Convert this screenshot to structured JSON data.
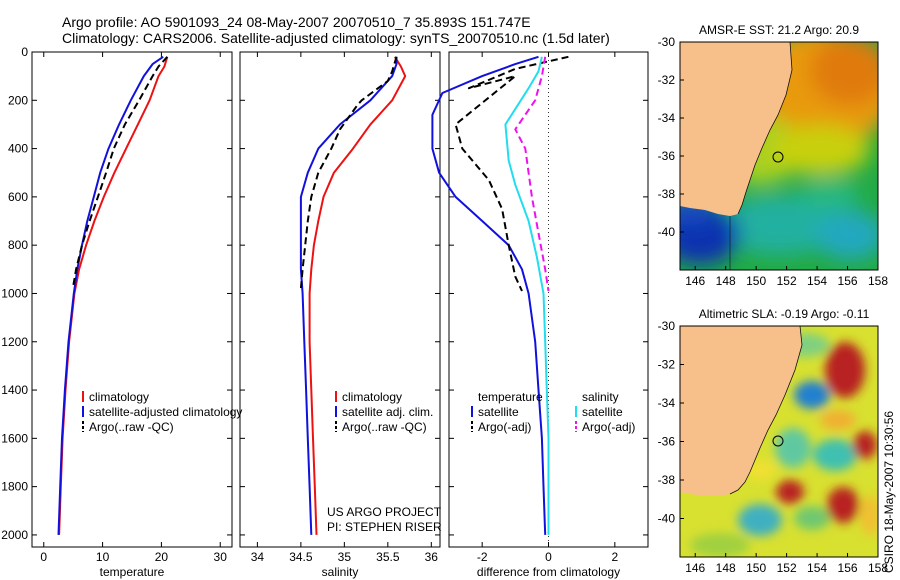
{
  "header": {
    "line1": "Argo profile: AO 5901093_24 08-May-2007 20070510_7 35.893S 151.747E",
    "line2": "Climatology: CARS2006. Satellite-adjusted climatology: synTS_20070510.nc (1.5d later)"
  },
  "credit": {
    "project": "US ARGO PROJECT",
    "pi": "PI: STEPHEN RISER",
    "side": "CSIRO 18-May-2007 10:30:56"
  },
  "colors": {
    "climatology": "#ee1111",
    "satellite": "#1111dd",
    "argo": "#000000",
    "salinity_sat": "#22ddee",
    "salinity_argo": "#ee11ee",
    "land": "#f7c08a"
  },
  "chart_data": [
    {
      "id": "temperature",
      "type": "line",
      "xlabel": "temperature",
      "ylabel": "",
      "xlim": [
        -2,
        32
      ],
      "ylim": [
        2050,
        0
      ],
      "xticks": [
        0,
        10,
        20,
        30
      ],
      "yticks": [
        0,
        200,
        400,
        600,
        800,
        1000,
        1200,
        1400,
        1600,
        1800,
        2000
      ],
      "legend": [
        "climatology",
        "satellite-adjusted climatology",
        "Argo(..raw -QC)"
      ],
      "series": [
        {
          "name": "climatology",
          "color": "#ee1111",
          "dash": false,
          "points": [
            [
              21.0,
              20
            ],
            [
              20.5,
              60
            ],
            [
              19.5,
              100
            ],
            [
              18.0,
              200
            ],
            [
              16.0,
              300
            ],
            [
              14.0,
              400
            ],
            [
              12.0,
              500
            ],
            [
              10.2,
              600
            ],
            [
              8.6,
              700
            ],
            [
              7.2,
              800
            ],
            [
              6.0,
              900
            ],
            [
              5.2,
              1000
            ],
            [
              4.3,
              1200
            ],
            [
              3.7,
              1400
            ],
            [
              3.2,
              1600
            ],
            [
              2.9,
              1800
            ],
            [
              2.6,
              2000
            ]
          ]
        },
        {
          "name": "satellite-adjusted climatology",
          "color": "#1111dd",
          "dash": false,
          "points": [
            [
              20.3,
              20
            ],
            [
              18.5,
              50
            ],
            [
              17.0,
              100
            ],
            [
              14.8,
              200
            ],
            [
              12.8,
              300
            ],
            [
              11.0,
              400
            ],
            [
              9.6,
              500
            ],
            [
              8.5,
              600
            ],
            [
              7.4,
              700
            ],
            [
              6.5,
              800
            ],
            [
              5.7,
              900
            ],
            [
              5.1,
              1000
            ],
            [
              4.2,
              1200
            ],
            [
              3.6,
              1400
            ],
            [
              3.1,
              1600
            ],
            [
              2.8,
              1800
            ],
            [
              2.5,
              2000
            ]
          ]
        },
        {
          "name": "Argo(..raw -QC)",
          "color": "#000000",
          "dash": true,
          "points": [
            [
              21.0,
              20
            ],
            [
              19.5,
              60
            ],
            [
              18.5,
              100
            ],
            [
              16.2,
              200
            ],
            [
              13.8,
              300
            ],
            [
              11.9,
              400
            ],
            [
              10.6,
              500
            ],
            [
              9.2,
              600
            ],
            [
              7.8,
              700
            ],
            [
              6.5,
              800
            ],
            [
              5.5,
              900
            ],
            [
              5.0,
              970
            ]
          ]
        }
      ]
    },
    {
      "id": "salinity",
      "type": "line",
      "xlabel": "salinity",
      "ylabel": "",
      "xlim": [
        33.8,
        36.1
      ],
      "ylim": [
        2050,
        0
      ],
      "xticks": [
        34,
        34.5,
        35,
        35.5,
        36
      ],
      "yticks": [
        0,
        200,
        400,
        600,
        800,
        1000,
        1200,
        1400,
        1600,
        1800,
        2000
      ],
      "legend": [
        "climatology",
        "satellite adj. clim.",
        "Argo(..raw -QC)"
      ],
      "series": [
        {
          "name": "climatology",
          "color": "#ee1111",
          "dash": false,
          "points": [
            [
              35.58,
              20
            ],
            [
              35.65,
              60
            ],
            [
              35.7,
              100
            ],
            [
              35.55,
              200
            ],
            [
              35.3,
              300
            ],
            [
              35.1,
              400
            ],
            [
              34.88,
              500
            ],
            [
              34.76,
              600
            ],
            [
              34.7,
              700
            ],
            [
              34.65,
              800
            ],
            [
              34.62,
              900
            ],
            [
              34.6,
              1000
            ],
            [
              34.6,
              1200
            ],
            [
              34.62,
              1400
            ],
            [
              34.64,
              1600
            ],
            [
              34.66,
              1800
            ],
            [
              34.68,
              2000
            ]
          ]
        },
        {
          "name": "satellite adj. clim.",
          "color": "#1111dd",
          "dash": false,
          "points": [
            [
              35.6,
              20
            ],
            [
              35.6,
              50
            ],
            [
              35.55,
              100
            ],
            [
              35.3,
              200
            ],
            [
              34.95,
              300
            ],
            [
              34.7,
              400
            ],
            [
              34.58,
              500
            ],
            [
              34.5,
              600
            ],
            [
              34.5,
              700
            ],
            [
              34.5,
              800
            ],
            [
              34.5,
              900
            ],
            [
              34.52,
              1000
            ],
            [
              34.54,
              1200
            ],
            [
              34.56,
              1400
            ],
            [
              34.58,
              1600
            ],
            [
              34.6,
              1800
            ],
            [
              34.62,
              2000
            ]
          ]
        },
        {
          "name": "Argo(..raw -QC)",
          "color": "#000000",
          "dash": true,
          "points": [
            [
              35.6,
              20
            ],
            [
              35.55,
              80
            ],
            [
              35.5,
              120
            ],
            [
              35.2,
              200
            ],
            [
              35.15,
              220
            ],
            [
              34.95,
              320
            ],
            [
              34.85,
              400
            ],
            [
              34.7,
              500
            ],
            [
              34.62,
              600
            ],
            [
              34.58,
              700
            ],
            [
              34.55,
              800
            ],
            [
              34.52,
              900
            ],
            [
              34.5,
              980
            ]
          ]
        }
      ]
    },
    {
      "id": "difference",
      "type": "line",
      "xlabel": "difference from climatology",
      "ylabel": "",
      "xlim": [
        -3,
        3
      ],
      "ylim": [
        2050,
        0
      ],
      "xticks": [
        -2,
        0,
        2
      ],
      "yticks": [
        0,
        200,
        400,
        600,
        800,
        1000,
        1200,
        1400,
        1600,
        1800,
        2000
      ],
      "legend_headers": [
        "temperature",
        "salinity"
      ],
      "legend": [
        "satellite",
        "Argo(-adj)",
        "satellite",
        "Argo(-adj)"
      ],
      "series": [
        {
          "name": "temperature satellite",
          "color": "#1111dd",
          "dash": false,
          "points": [
            [
              -0.3,
              20
            ],
            [
              -1.0,
              50
            ],
            [
              -2.0,
              100
            ],
            [
              -3.2,
              170
            ],
            [
              -3.5,
              260
            ],
            [
              -3.5,
              400
            ],
            [
              -3.3,
              500
            ],
            [
              -2.8,
              600
            ],
            [
              -2.0,
              700
            ],
            [
              -1.2,
              800
            ],
            [
              -0.8,
              900
            ],
            [
              -0.6,
              1000
            ],
            [
              -0.4,
              1200
            ],
            [
              -0.3,
              1400
            ],
            [
              -0.2,
              1600
            ],
            [
              -0.15,
              1800
            ],
            [
              -0.1,
              2000
            ]
          ]
        },
        {
          "name": "temperature Argo(-adj)",
          "color": "#000000",
          "dash": true,
          "points": [
            [
              0.6,
              20
            ],
            [
              -1.0,
              70
            ],
            [
              -2.4,
              150
            ],
            [
              -1.0,
              100
            ],
            [
              -2.8,
              300
            ],
            [
              -2.6,
              400
            ],
            [
              -1.8,
              530
            ],
            [
              -1.4,
              650
            ],
            [
              -1.2,
              800
            ],
            [
              -1.0,
              930
            ],
            [
              -0.8,
              990
            ]
          ]
        },
        {
          "name": "salinity satellite",
          "color": "#22ddee",
          "dash": false,
          "points": [
            [
              -0.2,
              20
            ],
            [
              -0.3,
              80
            ],
            [
              -0.6,
              150
            ],
            [
              -1.3,
              300
            ],
            [
              -1.2,
              450
            ],
            [
              -1.0,
              550
            ],
            [
              -0.6,
              700
            ],
            [
              -0.35,
              850
            ],
            [
              -0.15,
              1000
            ],
            [
              -0.1,
              1200
            ],
            [
              -0.05,
              1400
            ],
            [
              0.0,
              1600
            ],
            [
              0.0,
              1800
            ],
            [
              0.0,
              2000
            ]
          ]
        },
        {
          "name": "salinity Argo(-adj)",
          "color": "#ee11ee",
          "dash": true,
          "points": [
            [
              -0.1,
              20
            ],
            [
              -0.2,
              100
            ],
            [
              -0.4,
              200
            ],
            [
              -1.0,
              320
            ],
            [
              -0.7,
              400
            ],
            [
              -0.6,
              500
            ],
            [
              -0.5,
              600
            ],
            [
              -0.3,
              750
            ],
            [
              -0.1,
              900
            ],
            [
              0.0,
              990
            ]
          ]
        }
      ]
    },
    {
      "id": "sst-map",
      "type": "heatmap",
      "title": "AMSR-E SST: 21.2 Argo: 20.9",
      "xlim": [
        145,
        158
      ],
      "ylim": [
        -42,
        -30
      ],
      "xticks": [
        146,
        148,
        150,
        152,
        154,
        156,
        158
      ],
      "yticks": [
        -30,
        -32,
        -34,
        -36,
        -38,
        -40
      ],
      "marker": [
        151.75,
        -35.9
      ]
    },
    {
      "id": "sla-map",
      "type": "heatmap",
      "title": "Altimetric SLA: -0.19 Argo: -0.11",
      "xlim": [
        145,
        158
      ],
      "ylim": [
        -42,
        -30
      ],
      "xticks": [
        146,
        148,
        150,
        152,
        154,
        156,
        158
      ],
      "yticks": [
        -30,
        -32,
        -34,
        -36,
        -38,
        -40
      ],
      "marker": [
        151.75,
        -35.9
      ]
    }
  ]
}
